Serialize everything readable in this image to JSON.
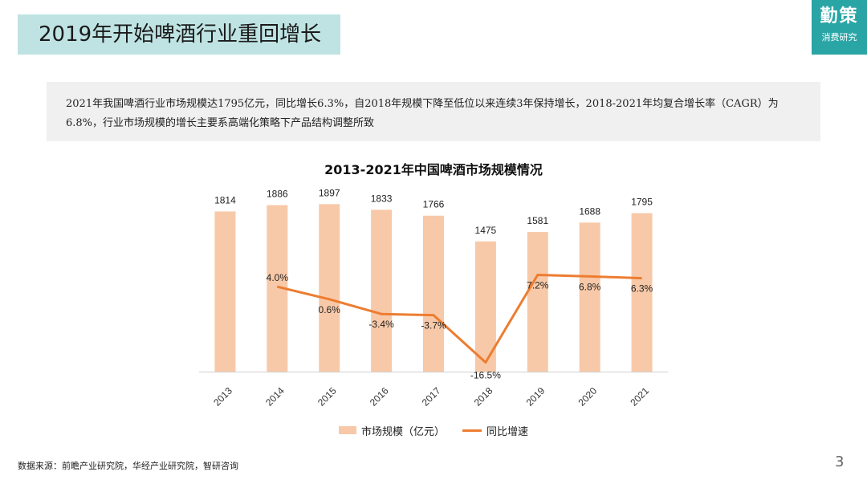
{
  "header": {
    "title": "2019年开始啤酒行业重回增长",
    "brand_name": "勤策",
    "brand_sub": "消费研究"
  },
  "summary": "2021年我国啤酒行业市场规模达1795亿元，同比增长6.3%，自2018年规模下降至低位以来连续3年保持增长，2018-2021年均复合增长率（CAGR）为6.8%，行业市场规模的增长主要系高端化策略下产品结构调整所致",
  "chart_data": {
    "type": "bar",
    "title": "2013-2021年中国啤酒市场规模情况",
    "categories": [
      "2013",
      "2014",
      "2015",
      "2016",
      "2017",
      "2018",
      "2019",
      "2020",
      "2021"
    ],
    "series": [
      {
        "name": "市场规模（亿元）",
        "type": "bar",
        "values": [
          1814,
          1886,
          1897,
          1833,
          1766,
          1475,
          1581,
          1688,
          1795
        ],
        "labels": [
          "1814",
          "1886",
          "1897",
          "1833",
          "1766",
          "1475",
          "1581",
          "1688",
          "1795"
        ],
        "color": "#f8c9a8"
      },
      {
        "name": "同比增速",
        "type": "line",
        "values": [
          null,
          4.0,
          0.6,
          -3.4,
          -3.7,
          -16.5,
          7.2,
          6.8,
          6.3
        ],
        "labels": [
          "",
          "4.0%",
          "0.6%",
          "-3.4%",
          "-3.7%",
          "-16.5%",
          "7.2%",
          "6.8%",
          "6.3%"
        ],
        "color": "#ed7d31"
      }
    ],
    "bar_ylim": [
      0,
      2300
    ],
    "line_ylim": [
      -19,
      36
    ],
    "grid": false,
    "legend_position": "bottom"
  },
  "footer": {
    "source": "数据来源：前瞻产业研究院，华经产业研究院，智研咨询",
    "page_number": "3"
  },
  "colors": {
    "title_bg": "#bfe3e3",
    "brand_bg": "#2aa5a6",
    "summary_bg": "#f0f0f0",
    "bar": "#f8c9a8",
    "line": "#ed7d31"
  }
}
